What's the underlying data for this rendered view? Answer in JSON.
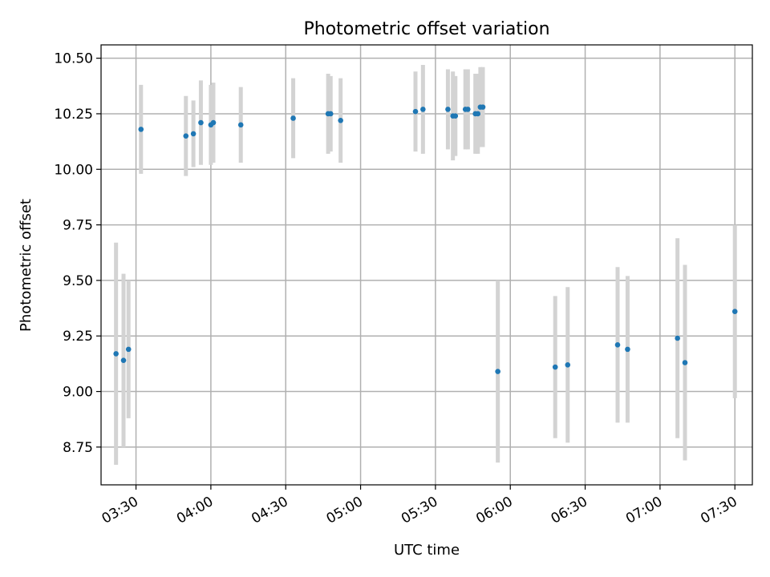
{
  "chart_data": {
    "type": "scatter",
    "title": "Photometric offset variation",
    "xlabel": "UTC time",
    "ylabel": "Photometric offset",
    "grid": true,
    "xlim": [
      "03:16",
      "07:37"
    ],
    "ylim": [
      8.58,
      10.56
    ],
    "x_ticks": [
      "03:30",
      "04:00",
      "04:30",
      "05:00",
      "05:30",
      "06:00",
      "06:30",
      "07:00",
      "07:30"
    ],
    "y_ticks": [
      8.75,
      9.0,
      9.25,
      9.5,
      9.75,
      10.0,
      10.25,
      10.5
    ],
    "y_tick_labels": [
      "8.75",
      "9.00",
      "9.25",
      "9.50",
      "9.75",
      "10.00",
      "10.25",
      "10.50"
    ],
    "colors": {
      "points": "#1f77b4",
      "errorbars": "#d3d3d3"
    },
    "series": [
      {
        "points": [
          {
            "time": "03:22",
            "y": 9.17,
            "err": 0.5
          },
          {
            "time": "03:25",
            "y": 9.14,
            "err": 0.39
          },
          {
            "time": "03:27",
            "y": 9.19,
            "err": 0.31
          },
          {
            "time": "03:32",
            "y": 10.18,
            "err": 0.2
          },
          {
            "time": "03:50",
            "y": 10.15,
            "err": 0.18
          },
          {
            "time": "03:53",
            "y": 10.16,
            "err": 0.15
          },
          {
            "time": "03:56",
            "y": 10.21,
            "err": 0.19
          },
          {
            "time": "04:00",
            "y": 10.2,
            "err": 0.18
          },
          {
            "time": "04:01",
            "y": 10.21,
            "err": 0.18
          },
          {
            "time": "04:12",
            "y": 10.2,
            "err": 0.17
          },
          {
            "time": "04:33",
            "y": 10.23,
            "err": 0.18
          },
          {
            "time": "04:47",
            "y": 10.25,
            "err": 0.18
          },
          {
            "time": "04:48",
            "y": 10.25,
            "err": 0.17
          },
          {
            "time": "04:52",
            "y": 10.22,
            "err": 0.19
          },
          {
            "time": "05:22",
            "y": 10.26,
            "err": 0.18
          },
          {
            "time": "05:25",
            "y": 10.27,
            "err": 0.2
          },
          {
            "time": "05:35",
            "y": 10.27,
            "err": 0.18
          },
          {
            "time": "05:37",
            "y": 10.24,
            "err": 0.2
          },
          {
            "time": "05:38",
            "y": 10.24,
            "err": 0.18
          },
          {
            "time": "05:42",
            "y": 10.27,
            "err": 0.18
          },
          {
            "time": "05:43",
            "y": 10.27,
            "err": 0.18
          },
          {
            "time": "05:46",
            "y": 10.25,
            "err": 0.18
          },
          {
            "time": "05:47",
            "y": 10.25,
            "err": 0.18
          },
          {
            "time": "05:48",
            "y": 10.28,
            "err": 0.18
          },
          {
            "time": "05:49",
            "y": 10.28,
            "err": 0.18
          },
          {
            "time": "05:55",
            "y": 9.09,
            "err": 0.41
          },
          {
            "time": "06:18",
            "y": 9.11,
            "err": 0.32
          },
          {
            "time": "06:23",
            "y": 9.12,
            "err": 0.35
          },
          {
            "time": "06:43",
            "y": 9.21,
            "err": 0.35
          },
          {
            "time": "06:47",
            "y": 9.19,
            "err": 0.33
          },
          {
            "time": "07:07",
            "y": 9.24,
            "err": 0.45
          },
          {
            "time": "07:10",
            "y": 9.13,
            "err": 0.44
          },
          {
            "time": "07:30",
            "y": 9.36,
            "err": 0.39
          }
        ]
      }
    ]
  }
}
